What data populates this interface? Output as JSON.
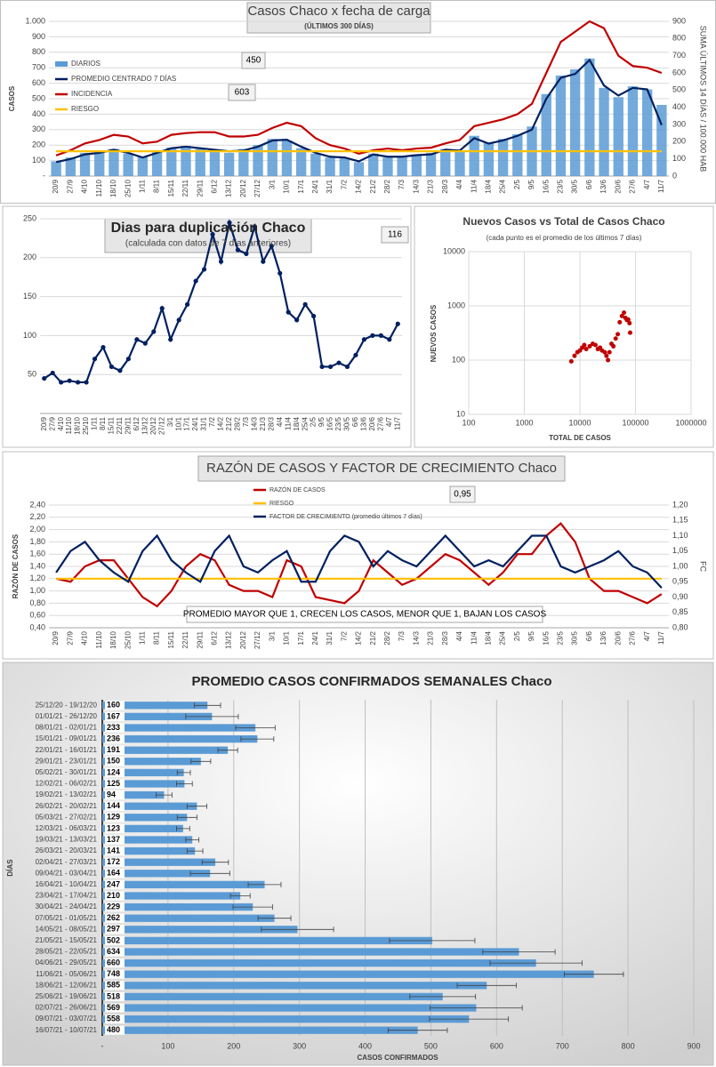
{
  "chart_data": [
    {
      "type": "combo",
      "title": "Casos  Chaco x fecha de carga",
      "subtitle": "(ÚLTIMOS 300 DÍAS)",
      "ylabel": "CASOS",
      "y2label": "SUMA  ÚLTIMOS 14 DÍAS / 100.000 HAB",
      "annotations": [
        "450",
        "603"
      ],
      "categories": [
        "20/9",
        "27/9",
        "4/10",
        "11/10",
        "18/10",
        "25/10",
        "1/11",
        "8/11",
        "15/11",
        "22/11",
        "29/11",
        "6/12",
        "13/12",
        "20/12",
        "27/12",
        "3/1",
        "10/1",
        "17/1",
        "24/1",
        "31/1",
        "7/2",
        "14/2",
        "21/2",
        "28/2",
        "7/3",
        "14/3",
        "21/3",
        "28/3",
        "4/4",
        "11/4",
        "18/4",
        "25/4",
        "2/5",
        "9/5",
        "16/5",
        "23/5",
        "30/5",
        "6/6",
        "13/6",
        "20/6",
        "27/6",
        "4/7",
        "11/7"
      ],
      "series": [
        {
          "name": "DIARIOS",
          "type": "bar",
          "color": "#5b9bd5",
          "values": [
            95,
            120,
            150,
            160,
            175,
            145,
            125,
            160,
            185,
            195,
            175,
            170,
            150,
            175,
            200,
            240,
            230,
            180,
            145,
            120,
            115,
            90,
            145,
            120,
            130,
            140,
            150,
            175,
            160,
            260,
            215,
            240,
            270,
            320,
            530,
            650,
            690,
            760,
            570,
            510,
            580,
            560,
            460
          ]
        },
        {
          "name": "PROMEDIO CENTRADO 7 DÍAS",
          "type": "line",
          "color": "#002060",
          "values": [
            90,
            110,
            140,
            150,
            170,
            150,
            120,
            150,
            180,
            190,
            180,
            170,
            160,
            165,
            190,
            230,
            235,
            190,
            150,
            125,
            120,
            95,
            140,
            125,
            125,
            135,
            140,
            170,
            165,
            245,
            210,
            230,
            260,
            300,
            500,
            635,
            660,
            750,
            585,
            520,
            570,
            560,
            330
          ]
        },
        {
          "name": "INCIDENCIA",
          "type": "line",
          "color": "#c00000",
          "axis": "y2",
          "values": [
            120,
            150,
            190,
            210,
            240,
            230,
            190,
            200,
            240,
            250,
            255,
            255,
            230,
            230,
            240,
            280,
            310,
            290,
            220,
            180,
            160,
            130,
            150,
            160,
            150,
            160,
            165,
            190,
            210,
            290,
            310,
            330,
            360,
            420,
            600,
            780,
            840,
            900,
            860,
            700,
            640,
            630,
            600
          ]
        },
        {
          "name": "RIESGO",
          "type": "line",
          "color": "#ffc000",
          "values": [
            160,
            160,
            160,
            160,
            160,
            160,
            160,
            160,
            160,
            160,
            160,
            160,
            160,
            160,
            160,
            160,
            160,
            160,
            160,
            160,
            160,
            160,
            160,
            160,
            160,
            160,
            160,
            160,
            160,
            160,
            160,
            160,
            160,
            160,
            160,
            160,
            160,
            160,
            160,
            160,
            160,
            160,
            160
          ]
        }
      ],
      "ylim": [
        0,
        1000
      ],
      "yticks": [
        {
          "value": 0,
          "label": "-"
        },
        100,
        200,
        300,
        400,
        500,
        600,
        700,
        800,
        900,
        {
          "value": 1000,
          "label": "1.000"
        }
      ],
      "y2lim": [
        0,
        900
      ],
      "y2ticks": [
        0,
        100,
        200,
        300,
        400,
        500,
        600,
        700,
        800,
        900
      ],
      "grid": true
    },
    {
      "type": "line",
      "title": "Dias para duplicación Chaco",
      "subtitle": "(calculada con datos de 7 días anteriores)",
      "annotations": [
        "116"
      ],
      "color": "#002060",
      "markers": true,
      "categories": [
        "20/9",
        "27/9",
        "4/10",
        "11/10",
        "18/10",
        "25/10",
        "1/11",
        "8/11",
        "15/11",
        "22/11",
        "29/11",
        "6/12",
        "13/12",
        "20/12",
        "27/12",
        "3/1",
        "10/1",
        "17/1",
        "24/1",
        "31/1",
        "7/2",
        "14/2",
        "21/2",
        "28/2",
        "7/3",
        "14/3",
        "21/3",
        "28/3",
        "4/4",
        "11/4",
        "18/4",
        "25/4",
        "2/5",
        "9/5",
        "16/5",
        "23/5",
        "30/5",
        "6/6",
        "13/6",
        "20/6",
        "27/6",
        "4/7",
        "11/7"
      ],
      "values": [
        45,
        52,
        40,
        42,
        40,
        40,
        70,
        85,
        60,
        55,
        70,
        95,
        90,
        105,
        135,
        95,
        120,
        140,
        170,
        185,
        230,
        195,
        245,
        210,
        205,
        240,
        195,
        215,
        180,
        130,
        120,
        140,
        125,
        60,
        60,
        65,
        60,
        75,
        95,
        100,
        100,
        95,
        115
      ],
      "ylim": [
        0,
        250
      ],
      "yticks": [
        50,
        100,
        150,
        200,
        250
      ],
      "grid": true
    },
    {
      "type": "scatter",
      "title": "Nuevos Casos vs Total de Casos Chaco",
      "subtitle": "(cada punto es el promedio de los últimos 7 días)",
      "xlabel": "TOTAL DE CASOS",
      "ylabel": "NUEVOS  CASOS",
      "color": "#c00000",
      "log_x": true,
      "log_y": true,
      "x": [
        7000,
        8000,
        9000,
        10000,
        11000,
        12000,
        13000,
        15000,
        17000,
        19000,
        21000,
        23000,
        25000,
        28000,
        30000,
        32000,
        34000,
        37000,
        40000,
        44000,
        48000,
        52000,
        57000,
        62000,
        66000,
        70000,
        74000,
        78000,
        80000
      ],
      "y": [
        95,
        120,
        140,
        150,
        170,
        190,
        160,
        180,
        200,
        190,
        160,
        170,
        150,
        140,
        120,
        100,
        140,
        200,
        180,
        250,
        300,
        500,
        650,
        750,
        600,
        550,
        560,
        480,
        320
      ],
      "xlim": [
        100,
        1000000
      ],
      "xticks": [
        100,
        1000,
        10000,
        100000,
        1000000
      ],
      "ylim": [
        10,
        10000
      ],
      "yticks": [
        10,
        100,
        1000,
        10000
      ],
      "grid": true
    },
    {
      "type": "line",
      "title": "RAZÓN DE CASOS Y FACTOR DE CRECIMIENTO Chaco",
      "ylabel": "RAZÓN DE CASOS",
      "y2label": "FC",
      "annotations": [
        "0,95",
        "PROMEDIO MAYOR QUE 1, CRECEN LOS CASOS, MENOR QUE 1, BAJAN LOS CASOS"
      ],
      "categories": [
        "20/9",
        "27/9",
        "4/10",
        "11/10",
        "18/10",
        "25/10",
        "1/11",
        "8/11",
        "15/11",
        "22/11",
        "29/11",
        "6/12",
        "13/12",
        "20/12",
        "27/12",
        "3/1",
        "10/1",
        "17/1",
        "24/1",
        "31/1",
        "7/2",
        "14/2",
        "21/2",
        "28/2",
        "7/3",
        "14/3",
        "21/3",
        "28/3",
        "4/4",
        "11/4",
        "18/4",
        "25/4",
        "2/5",
        "9/5",
        "16/5",
        "23/5",
        "30/5",
        "6/6",
        "13/6",
        "20/6",
        "27/6",
        "4/7",
        "11/7"
      ],
      "series": [
        {
          "name": "RAZÓN DE CASOS",
          "color": "#c00000",
          "values": [
            1.2,
            1.15,
            1.4,
            1.5,
            1.5,
            1.2,
            0.9,
            0.75,
            1.0,
            1.4,
            1.6,
            1.5,
            1.1,
            1.0,
            1.0,
            0.9,
            1.5,
            1.4,
            0.9,
            0.85,
            0.8,
            1.0,
            1.5,
            1.3,
            1.1,
            1.2,
            1.4,
            1.6,
            1.5,
            1.3,
            1.1,
            1.3,
            1.6,
            1.6,
            1.9,
            2.1,
            1.8,
            1.2,
            1.0,
            1.0,
            0.9,
            0.8,
            0.95
          ]
        },
        {
          "name": "RIESGO",
          "color": "#ffc000",
          "values": [
            1.2,
            1.2,
            1.2,
            1.2,
            1.2,
            1.2,
            1.2,
            1.2,
            1.2,
            1.2,
            1.2,
            1.2,
            1.2,
            1.2,
            1.2,
            1.2,
            1.2,
            1.2,
            1.2,
            1.2,
            1.2,
            1.2,
            1.2,
            1.2,
            1.2,
            1.2,
            1.2,
            1.2,
            1.2,
            1.2,
            1.2,
            1.2,
            1.2,
            1.2,
            1.2,
            1.2,
            1.2,
            1.2,
            1.2,
            1.2,
            1.2,
            1.2,
            1.2
          ]
        },
        {
          "name": "FACTOR DE CRECIMIENTO (promedio últimos 7 días)",
          "color": "#002060",
          "axis": "y2",
          "values": [
            0.98,
            1.05,
            1.08,
            1.02,
            0.98,
            0.95,
            1.05,
            1.1,
            1.02,
            0.98,
            0.95,
            1.05,
            1.1,
            1.0,
            0.98,
            1.02,
            1.05,
            0.95,
            0.95,
            1.05,
            1.1,
            1.08,
            1.0,
            1.05,
            1.02,
            1.0,
            1.05,
            1.1,
            1.05,
            1.0,
            1.02,
            1.0,
            1.05,
            1.1,
            1.1,
            1.0,
            0.98,
            1.0,
            1.02,
            1.05,
            1.0,
            0.98,
            0.93
          ]
        }
      ],
      "ylim": [
        0.4,
        2.4
      ],
      "yticks": [
        {
          "value": 0.4,
          "label": "0,40"
        },
        {
          "value": 0.6,
          "label": "0,60"
        },
        {
          "value": 0.8,
          "label": "0,80"
        },
        {
          "value": 1.0,
          "label": "1,00"
        },
        {
          "value": 1.2,
          "label": "1,20"
        },
        {
          "value": 1.4,
          "label": "1,40"
        },
        {
          "value": 1.6,
          "label": "1,60"
        },
        {
          "value": 1.8,
          "label": "1,80"
        },
        {
          "value": 2.0,
          "label": "2,00"
        },
        {
          "value": 2.2,
          "label": "2,20"
        },
        {
          "value": 2.4,
          "label": "2,40"
        }
      ],
      "y2lim": [
        0.8,
        1.2
      ],
      "y2ticks": [
        {
          "value": 0.8,
          "label": "0,80"
        },
        {
          "value": 0.85,
          "label": "0,85"
        },
        {
          "value": 0.9,
          "label": "0,90"
        },
        {
          "value": 0.95,
          "label": "0,95"
        },
        {
          "value": 1.0,
          "label": "1,00"
        },
        {
          "value": 1.05,
          "label": "1,05"
        },
        {
          "value": 1.1,
          "label": "1,10"
        },
        {
          "value": 1.15,
          "label": "1,15"
        },
        {
          "value": 1.2,
          "label": "1,20"
        }
      ],
      "grid": true
    },
    {
      "type": "bar",
      "orientation": "horizontal",
      "title": "PROMEDIO CASOS CONFIRMADOS SEMANALES Chaco",
      "xlabel": "CASOS CONFIRMADOS",
      "ylabel": "DÍAS",
      "color": "#5b9bd5",
      "categories": [
        "25/12/20 - 19/12/20",
        "01/01/21 - 26/12/20",
        "08/01/21 - 02/01/21",
        "15/01/21 - 09/01/21",
        "22/01/21 - 16/01/21",
        "29/01/21 - 23/01/21",
        "05/02/21 - 30/01/21",
        "12/02/21 - 06/02/21",
        "19/02/21 - 13/02/21",
        "26/02/21 - 20/02/21",
        "05/03/21 - 27/02/21",
        "12/03/21 - 06/03/21",
        "19/03/21 - 13/03/21",
        "26/03/21 - 20/03/21",
        "02/04/21 - 27/03/21",
        "09/04/21 - 03/04/21",
        "16/04/21 - 10/04/21",
        "23/04/21 - 17/04/21",
        "30/04/21 - 24/04/21",
        "07/05/21 - 01/05/21",
        "14/05/21 - 08/05/21",
        "21/05/21 - 15/05/21",
        "28/05/21 - 22/05/21",
        "04/06/21 - 29/05/21",
        "11/06/21 - 05/06/21",
        "18/06/21 - 12/06/21",
        "25/06/21 - 19/06/21",
        "02/07/21 - 26/06/21",
        "09/07/21 - 03/07/21",
        "16/07/21 - 10/07/21"
      ],
      "values": [
        160,
        167,
        233,
        236,
        191,
        150,
        124,
        125,
        94,
        144,
        129,
        123,
        137,
        141,
        172,
        164,
        247,
        210,
        229,
        262,
        297,
        502,
        634,
        660,
        748,
        585,
        518,
        569,
        558,
        480
      ],
      "errors": [
        20,
        40,
        30,
        25,
        15,
        15,
        10,
        12,
        12,
        15,
        15,
        10,
        10,
        12,
        20,
        30,
        25,
        15,
        30,
        25,
        55,
        65,
        55,
        70,
        45,
        45,
        50,
        70,
        60,
        45
      ],
      "xlim": [
        0,
        900
      ],
      "xticks": [
        {
          "value": 0,
          "label": "-"
        },
        100,
        200,
        300,
        400,
        500,
        600,
        700,
        800,
        900
      ],
      "grid": true
    }
  ]
}
